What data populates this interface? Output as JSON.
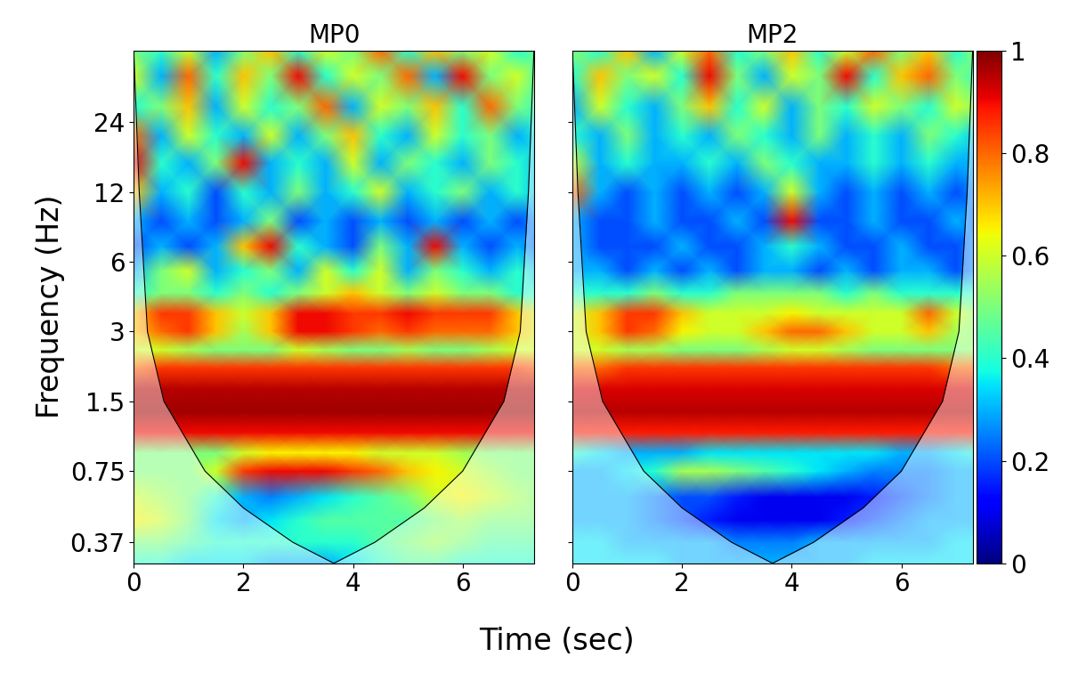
{
  "chart_data": [
    {
      "type": "heatmap",
      "title": "MP0",
      "y_label": "Frequency (Hz)",
      "x_label": "Time (sec)",
      "log": "y",
      "tick_labels": true,
      "xlim": [
        0,
        7.3
      ],
      "ylim": [
        0.3,
        49
      ],
      "xticks": [
        0,
        2,
        4,
        6
      ],
      "yticks": [
        0.37,
        0.75,
        1.5,
        3,
        6,
        12,
        24
      ],
      "x": [
        0,
        0.5,
        1,
        1.5,
        2,
        2.5,
        3,
        3.5,
        4,
        4.5,
        5,
        5.5,
        6,
        6.5,
        7,
        7.5
      ],
      "y": [
        0.3,
        0.37,
        0.46,
        0.58,
        0.75,
        0.9,
        1.1,
        1.35,
        1.7,
        2.1,
        2.5,
        3,
        3.6,
        4.4,
        5.5,
        7,
        9,
        12,
        16,
        21,
        28,
        38,
        49
      ],
      "cells": [
        [
          0.4,
          0.4,
          0.35,
          0.35,
          0.35,
          0.3,
          0.3,
          0.3,
          0.35,
          0.4,
          0.45,
          0.45,
          0.4,
          0.4,
          0.4,
          0.4
        ],
        [
          0.5,
          0.5,
          0.45,
          0.4,
          0.4,
          0.4,
          0.4,
          0.4,
          0.4,
          0.45,
          0.5,
          0.55,
          0.5,
          0.45,
          0.45,
          0.45
        ],
        [
          0.65,
          0.6,
          0.5,
          0.35,
          0.3,
          0.35,
          0.4,
          0.45,
          0.45,
          0.45,
          0.45,
          0.5,
          0.55,
          0.5,
          0.5,
          0.5
        ],
        [
          0.6,
          0.55,
          0.5,
          0.4,
          0.3,
          0.25,
          0.3,
          0.35,
          0.4,
          0.45,
          0.5,
          0.6,
          0.65,
          0.6,
          0.55,
          0.5
        ],
        [
          0.5,
          0.5,
          0.5,
          0.6,
          0.85,
          0.9,
          0.9,
          0.9,
          0.85,
          0.8,
          0.7,
          0.65,
          0.6,
          0.55,
          0.5,
          0.5
        ],
        [
          0.5,
          0.5,
          0.5,
          0.5,
          0.6,
          0.65,
          0.65,
          0.65,
          0.65,
          0.6,
          0.6,
          0.6,
          0.55,
          0.5,
          0.5,
          0.5
        ],
        [
          0.9,
          0.9,
          0.9,
          0.9,
          0.9,
          0.9,
          0.9,
          0.9,
          0.9,
          0.9,
          0.9,
          0.9,
          0.9,
          0.9,
          0.9,
          0.9
        ],
        [
          0.97,
          0.97,
          0.97,
          0.97,
          0.97,
          0.97,
          0.97,
          0.97,
          0.97,
          0.97,
          0.97,
          0.97,
          0.97,
          0.97,
          0.97,
          0.97
        ],
        [
          0.95,
          0.95,
          0.95,
          0.95,
          0.95,
          0.95,
          0.95,
          0.95,
          0.95,
          0.95,
          0.95,
          0.95,
          0.95,
          0.95,
          0.95,
          0.95
        ],
        [
          0.8,
          0.85,
          0.85,
          0.85,
          0.85,
          0.85,
          0.85,
          0.85,
          0.85,
          0.85,
          0.85,
          0.85,
          0.85,
          0.85,
          0.85,
          0.8
        ],
        [
          0.6,
          0.6,
          0.55,
          0.5,
          0.5,
          0.5,
          0.6,
          0.55,
          0.5,
          0.5,
          0.55,
          0.5,
          0.5,
          0.55,
          0.6,
          0.6
        ],
        [
          0.7,
          0.8,
          0.85,
          0.7,
          0.55,
          0.7,
          0.9,
          0.9,
          0.85,
          0.8,
          0.85,
          0.8,
          0.8,
          0.8,
          0.7,
          0.6
        ],
        [
          0.7,
          0.85,
          0.85,
          0.7,
          0.6,
          0.7,
          0.9,
          0.9,
          0.85,
          0.85,
          0.9,
          0.85,
          0.85,
          0.85,
          0.7,
          0.6
        ],
        [
          0.4,
          0.5,
          0.5,
          0.4,
          0.5,
          0.4,
          0.5,
          0.6,
          0.7,
          0.6,
          0.5,
          0.6,
          0.5,
          0.5,
          0.4,
          0.4
        ],
        [
          0.3,
          0.5,
          0.6,
          0.3,
          0.4,
          0.5,
          0.3,
          0.6,
          0.4,
          0.6,
          0.3,
          0.5,
          0.4,
          0.3,
          0.4,
          0.3
        ],
        [
          0.2,
          0.3,
          0.2,
          0.3,
          0.7,
          0.9,
          0.4,
          0.3,
          0.2,
          0.5,
          0.3,
          0.9,
          0.3,
          0.2,
          0.3,
          0.2
        ],
        [
          0.3,
          0.2,
          0.3,
          0.2,
          0.3,
          0.5,
          0.2,
          0.3,
          0.2,
          0.3,
          0.2,
          0.3,
          0.2,
          0.3,
          0.2,
          0.3
        ],
        [
          0.7,
          0.3,
          0.4,
          0.2,
          0.4,
          0.3,
          0.5,
          0.3,
          0.4,
          0.6,
          0.3,
          0.4,
          0.5,
          0.3,
          0.4,
          0.3
        ],
        [
          0.9,
          0.4,
          0.3,
          0.5,
          0.9,
          0.3,
          0.4,
          0.3,
          0.6,
          0.3,
          0.5,
          0.4,
          0.3,
          0.5,
          0.4,
          0.3
        ],
        [
          0.8,
          0.3,
          0.6,
          0.4,
          0.3,
          0.6,
          0.3,
          0.5,
          0.7,
          0.4,
          0.3,
          0.6,
          0.4,
          0.5,
          0.3,
          0.4
        ],
        [
          0.4,
          0.5,
          0.7,
          0.3,
          0.6,
          0.4,
          0.5,
          0.8,
          0.3,
          0.6,
          0.5,
          0.7,
          0.4,
          0.8,
          0.5,
          0.4
        ],
        [
          0.6,
          0.3,
          0.8,
          0.4,
          0.7,
          0.5,
          0.9,
          0.4,
          0.6,
          0.5,
          0.8,
          0.3,
          0.9,
          0.5,
          0.6,
          0.4
        ],
        [
          0.5,
          0.4,
          0.6,
          0.3,
          0.5,
          0.7,
          0.4,
          0.6,
          0.5,
          0.8,
          0.4,
          0.7,
          0.5,
          0.6,
          0.4,
          0.5
        ]
      ],
      "coi": {
        "x": [
          0,
          0.1,
          0.25,
          0.55,
          1.3,
          2.0,
          2.9,
          3.65,
          4.4,
          5.3,
          6.0,
          6.75,
          7.05,
          7.2,
          7.3
        ],
        "y": [
          49,
          12,
          3,
          1.5,
          0.75,
          0.52,
          0.37,
          0.3,
          0.37,
          0.52,
          0.75,
          1.5,
          3,
          12,
          49
        ]
      }
    },
    {
      "type": "heatmap",
      "title": "MP2",
      "log": "y",
      "tick_labels": "x",
      "xlim": [
        0,
        7.3
      ],
      "ylim": [
        0.3,
        49
      ],
      "xticks": [
        0,
        2,
        4,
        6
      ],
      "yticks": [
        0.37,
        0.75,
        1.5,
        3,
        6,
        12,
        24
      ],
      "x": [
        0,
        0.5,
        1,
        1.5,
        2,
        2.5,
        3,
        3.5,
        4,
        4.5,
        5,
        5.5,
        6,
        6.5,
        7,
        7.5
      ],
      "y": [
        0.3,
        0.37,
        0.46,
        0.58,
        0.75,
        0.9,
        1.1,
        1.35,
        1.7,
        2.1,
        2.5,
        3,
        3.6,
        4.4,
        5.5,
        7,
        9,
        12,
        16,
        21,
        28,
        38,
        49
      ],
      "cells": [
        [
          0.35,
          0.35,
          0.35,
          0.35,
          0.3,
          0.3,
          0.3,
          0.3,
          0.3,
          0.3,
          0.3,
          0.35,
          0.35,
          0.35,
          0.35,
          0.35
        ],
        [
          0.35,
          0.35,
          0.3,
          0.3,
          0.3,
          0.3,
          0.25,
          0.25,
          0.25,
          0.3,
          0.3,
          0.3,
          0.3,
          0.3,
          0.35,
          0.35
        ],
        [
          0.3,
          0.3,
          0.3,
          0.25,
          0.2,
          0.15,
          0.1,
          0.1,
          0.1,
          0.1,
          0.15,
          0.2,
          0.25,
          0.3,
          0.3,
          0.3
        ],
        [
          0.3,
          0.3,
          0.3,
          0.25,
          0.2,
          0.2,
          0.15,
          0.1,
          0.1,
          0.1,
          0.1,
          0.15,
          0.2,
          0.25,
          0.3,
          0.3
        ],
        [
          0.3,
          0.3,
          0.35,
          0.4,
          0.55,
          0.55,
          0.5,
          0.45,
          0.4,
          0.35,
          0.3,
          0.25,
          0.25,
          0.25,
          0.3,
          0.3
        ],
        [
          0.4,
          0.35,
          0.3,
          0.3,
          0.3,
          0.35,
          0.35,
          0.35,
          0.35,
          0.35,
          0.35,
          0.35,
          0.3,
          0.3,
          0.35,
          0.4
        ],
        [
          0.88,
          0.88,
          0.88,
          0.88,
          0.88,
          0.88,
          0.88,
          0.88,
          0.88,
          0.88,
          0.88,
          0.88,
          0.88,
          0.88,
          0.88,
          0.88
        ],
        [
          0.95,
          0.95,
          0.95,
          0.95,
          0.95,
          0.95,
          0.95,
          0.95,
          0.95,
          0.95,
          0.95,
          0.95,
          0.95,
          0.95,
          0.95,
          0.95
        ],
        [
          0.92,
          0.92,
          0.92,
          0.92,
          0.92,
          0.92,
          0.92,
          0.92,
          0.92,
          0.92,
          0.92,
          0.92,
          0.92,
          0.92,
          0.92,
          0.92
        ],
        [
          0.8,
          0.8,
          0.85,
          0.85,
          0.85,
          0.85,
          0.85,
          0.85,
          0.85,
          0.85,
          0.85,
          0.85,
          0.85,
          0.85,
          0.8,
          0.8
        ],
        [
          0.6,
          0.6,
          0.55,
          0.55,
          0.5,
          0.5,
          0.5,
          0.55,
          0.6,
          0.6,
          0.55,
          0.5,
          0.5,
          0.5,
          0.5,
          0.55
        ],
        [
          0.6,
          0.7,
          0.85,
          0.8,
          0.65,
          0.6,
          0.6,
          0.7,
          0.8,
          0.8,
          0.7,
          0.6,
          0.6,
          0.7,
          0.55,
          0.5
        ],
        [
          0.6,
          0.7,
          0.85,
          0.85,
          0.7,
          0.6,
          0.6,
          0.6,
          0.65,
          0.6,
          0.6,
          0.6,
          0.6,
          0.8,
          0.6,
          0.5
        ],
        [
          0.4,
          0.4,
          0.4,
          0.5,
          0.4,
          0.4,
          0.5,
          0.5,
          0.5,
          0.5,
          0.4,
          0.5,
          0.4,
          0.4,
          0.4,
          0.4
        ],
        [
          0.3,
          0.3,
          0.2,
          0.3,
          0.2,
          0.3,
          0.2,
          0.3,
          0.3,
          0.2,
          0.3,
          0.2,
          0.3,
          0.3,
          0.2,
          0.3
        ],
        [
          0.3,
          0.2,
          0.2,
          0.2,
          0.3,
          0.2,
          0.2,
          0.3,
          0.4,
          0.3,
          0.2,
          0.2,
          0.3,
          0.2,
          0.2,
          0.3
        ],
        [
          0.3,
          0.2,
          0.2,
          0.3,
          0.2,
          0.2,
          0.3,
          0.2,
          0.9,
          0.2,
          0.2,
          0.3,
          0.2,
          0.2,
          0.3,
          0.2
        ],
        [
          0.8,
          0.3,
          0.2,
          0.3,
          0.2,
          0.3,
          0.2,
          0.3,
          0.6,
          0.3,
          0.2,
          0.3,
          0.2,
          0.3,
          0.2,
          0.3
        ],
        [
          0.6,
          0.3,
          0.4,
          0.3,
          0.3,
          0.4,
          0.3,
          0.5,
          0.4,
          0.3,
          0.3,
          0.4,
          0.3,
          0.4,
          0.3,
          0.3
        ],
        [
          0.4,
          0.3,
          0.5,
          0.3,
          0.4,
          0.3,
          0.5,
          0.4,
          0.3,
          0.5,
          0.3,
          0.4,
          0.3,
          0.5,
          0.4,
          0.3
        ],
        [
          0.3,
          0.6,
          0.4,
          0.3,
          0.5,
          0.7,
          0.4,
          0.6,
          0.3,
          0.5,
          0.4,
          0.6,
          0.5,
          0.4,
          0.6,
          0.5
        ],
        [
          0.4,
          0.7,
          0.5,
          0.6,
          0.4,
          0.9,
          0.5,
          0.3,
          0.6,
          0.5,
          0.9,
          0.4,
          0.7,
          0.8,
          0.5,
          0.4
        ],
        [
          0.5,
          0.4,
          0.7,
          0.3,
          0.6,
          0.8,
          0.4,
          0.5,
          0.7,
          0.4,
          0.6,
          0.8,
          0.5,
          0.7,
          0.4,
          0.6
        ]
      ],
      "coi": {
        "x": [
          0,
          0.1,
          0.25,
          0.55,
          1.3,
          2.0,
          2.9,
          3.65,
          4.4,
          5.3,
          6.0,
          6.75,
          7.05,
          7.2,
          7.3
        ],
        "y": [
          49,
          12,
          3,
          1.5,
          0.75,
          0.52,
          0.37,
          0.3,
          0.37,
          0.52,
          0.75,
          1.5,
          3,
          12,
          49
        ]
      },
      "colorbar": {
        "range": [
          0,
          1
        ],
        "ticks": [
          0,
          0.2,
          0.4,
          0.6,
          0.8,
          1
        ]
      }
    }
  ]
}
